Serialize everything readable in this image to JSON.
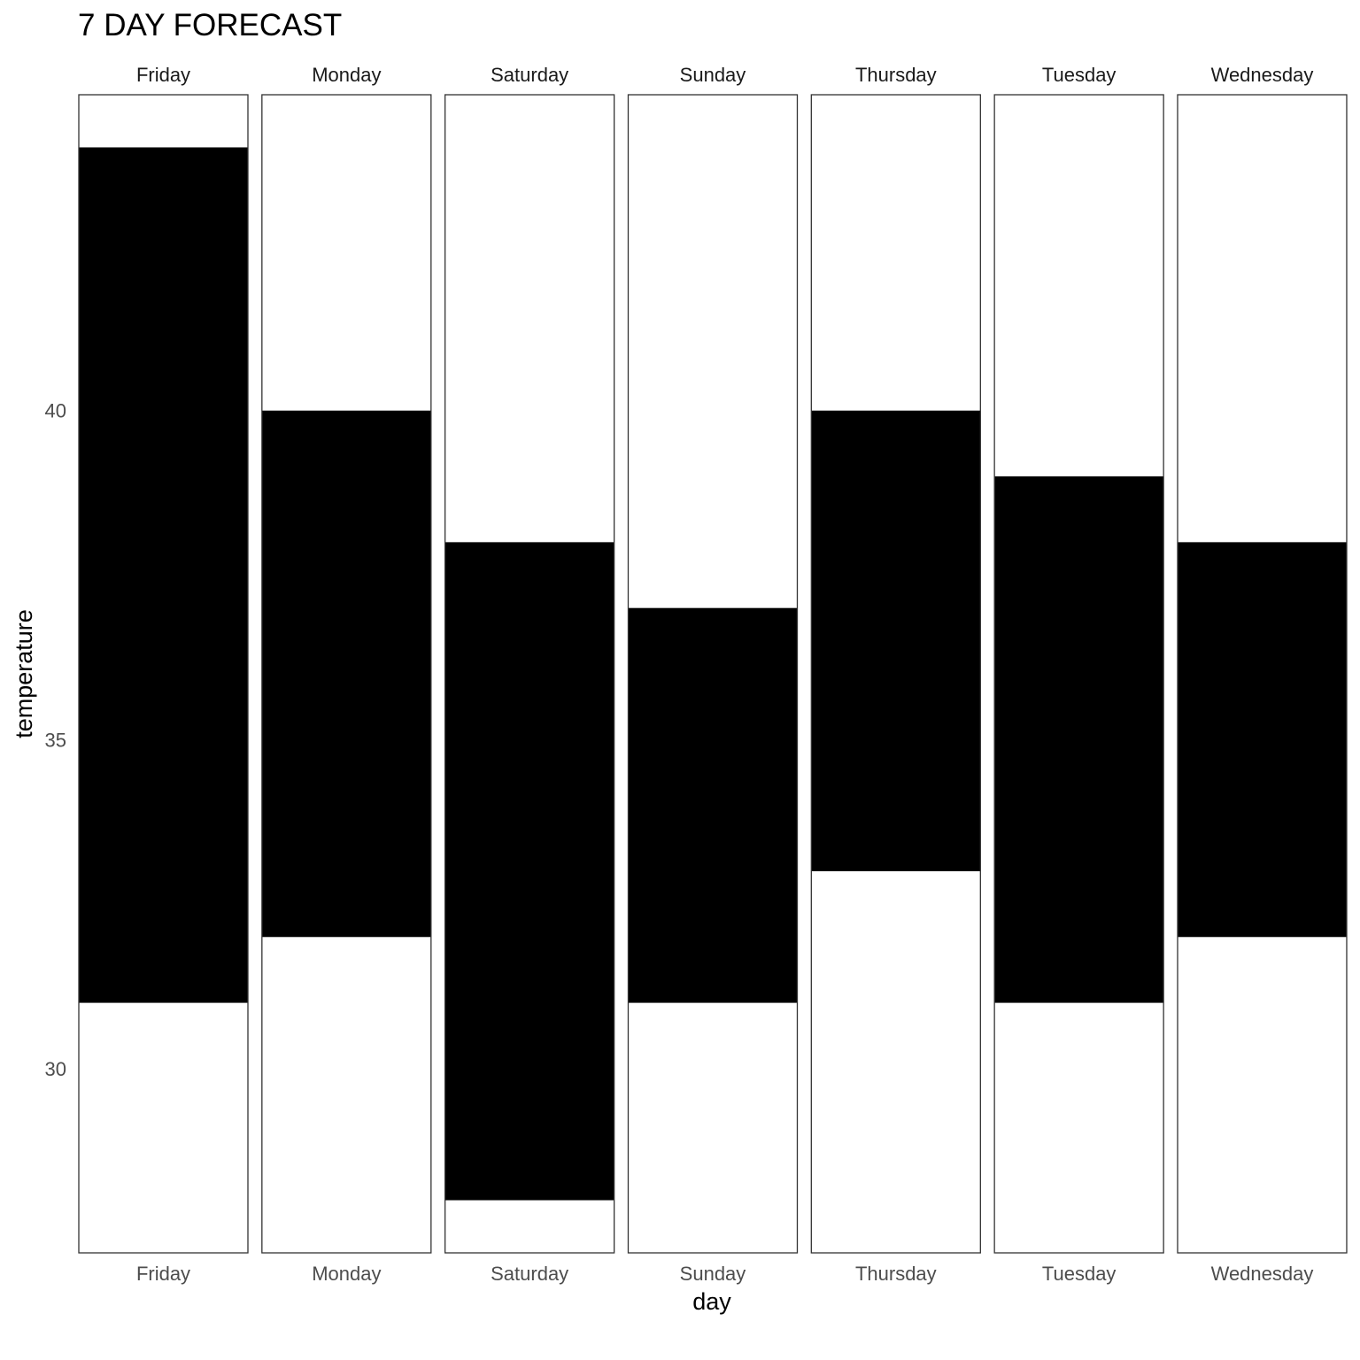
{
  "chart_data": {
    "type": "bar",
    "title": "7 DAY FORECAST",
    "xlabel": "day",
    "ylabel": "temperature",
    "categories": [
      "Friday",
      "Monday",
      "Saturday",
      "Sunday",
      "Thursday",
      "Tuesday",
      "Wednesday"
    ],
    "series": [
      {
        "low": 31,
        "high": 44
      },
      {
        "low": 32,
        "high": 40
      },
      {
        "low": 28,
        "high": 38
      },
      {
        "low": 31,
        "high": 37
      },
      {
        "low": 33,
        "high": 40
      },
      {
        "low": 31,
        "high": 39
      },
      {
        "low": 32,
        "high": 38
      }
    ],
    "ylim": [
      27.2,
      44.8
    ],
    "yticks": [
      30,
      35,
      40
    ],
    "ytick_labels": [
      "30",
      "35",
      "40"
    ],
    "bar_color": "#000000",
    "panel_border_color": "#333333",
    "grid": false,
    "facets": "one panel per day, labels above and below"
  }
}
